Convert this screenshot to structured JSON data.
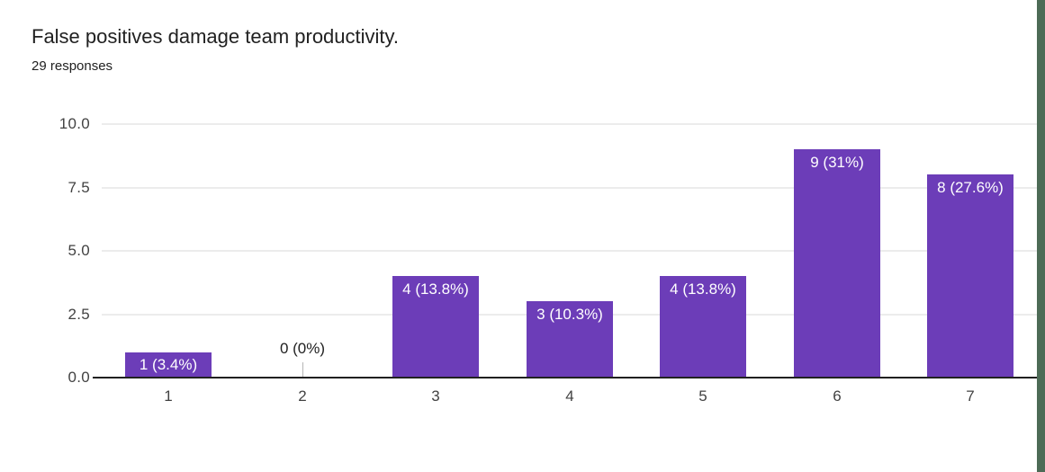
{
  "header": {
    "title": "False positives damage team productivity.",
    "subtitle": "29 responses"
  },
  "chart_data": {
    "type": "bar",
    "title": "False positives damage team productivity.",
    "subtitle": "29 responses",
    "categories": [
      "1",
      "2",
      "3",
      "4",
      "5",
      "6",
      "7"
    ],
    "values": [
      1,
      0,
      4,
      3,
      4,
      9,
      8
    ],
    "bar_labels": [
      "1 (3.4%)",
      "0 (0%)",
      "4 (13.8%)",
      "3 (10.3%)",
      "4 (13.8%)",
      "9 (31%)",
      "8 (27.6%)"
    ],
    "xlabel": "",
    "ylabel": "",
    "ylim": [
      0,
      10
    ],
    "yticks": [
      0,
      2.5,
      5,
      7.5,
      10
    ],
    "ytick_labels": [
      "0.0",
      "2.5",
      "5.0",
      "7.5",
      "10.0"
    ],
    "grid": true,
    "legend": "none",
    "colors": {
      "bar": "#6c3db8",
      "bar_label_inside": "#ffffff",
      "bar_label_outside": "#212121",
      "gridline": "#ececec",
      "axis_line": "#212121",
      "tick_text": "#424242",
      "title_text": "#212121",
      "background": "#ffffff",
      "zero_stub": "#b5b5b5",
      "right_edge_stripe": "#4d6b56"
    }
  }
}
